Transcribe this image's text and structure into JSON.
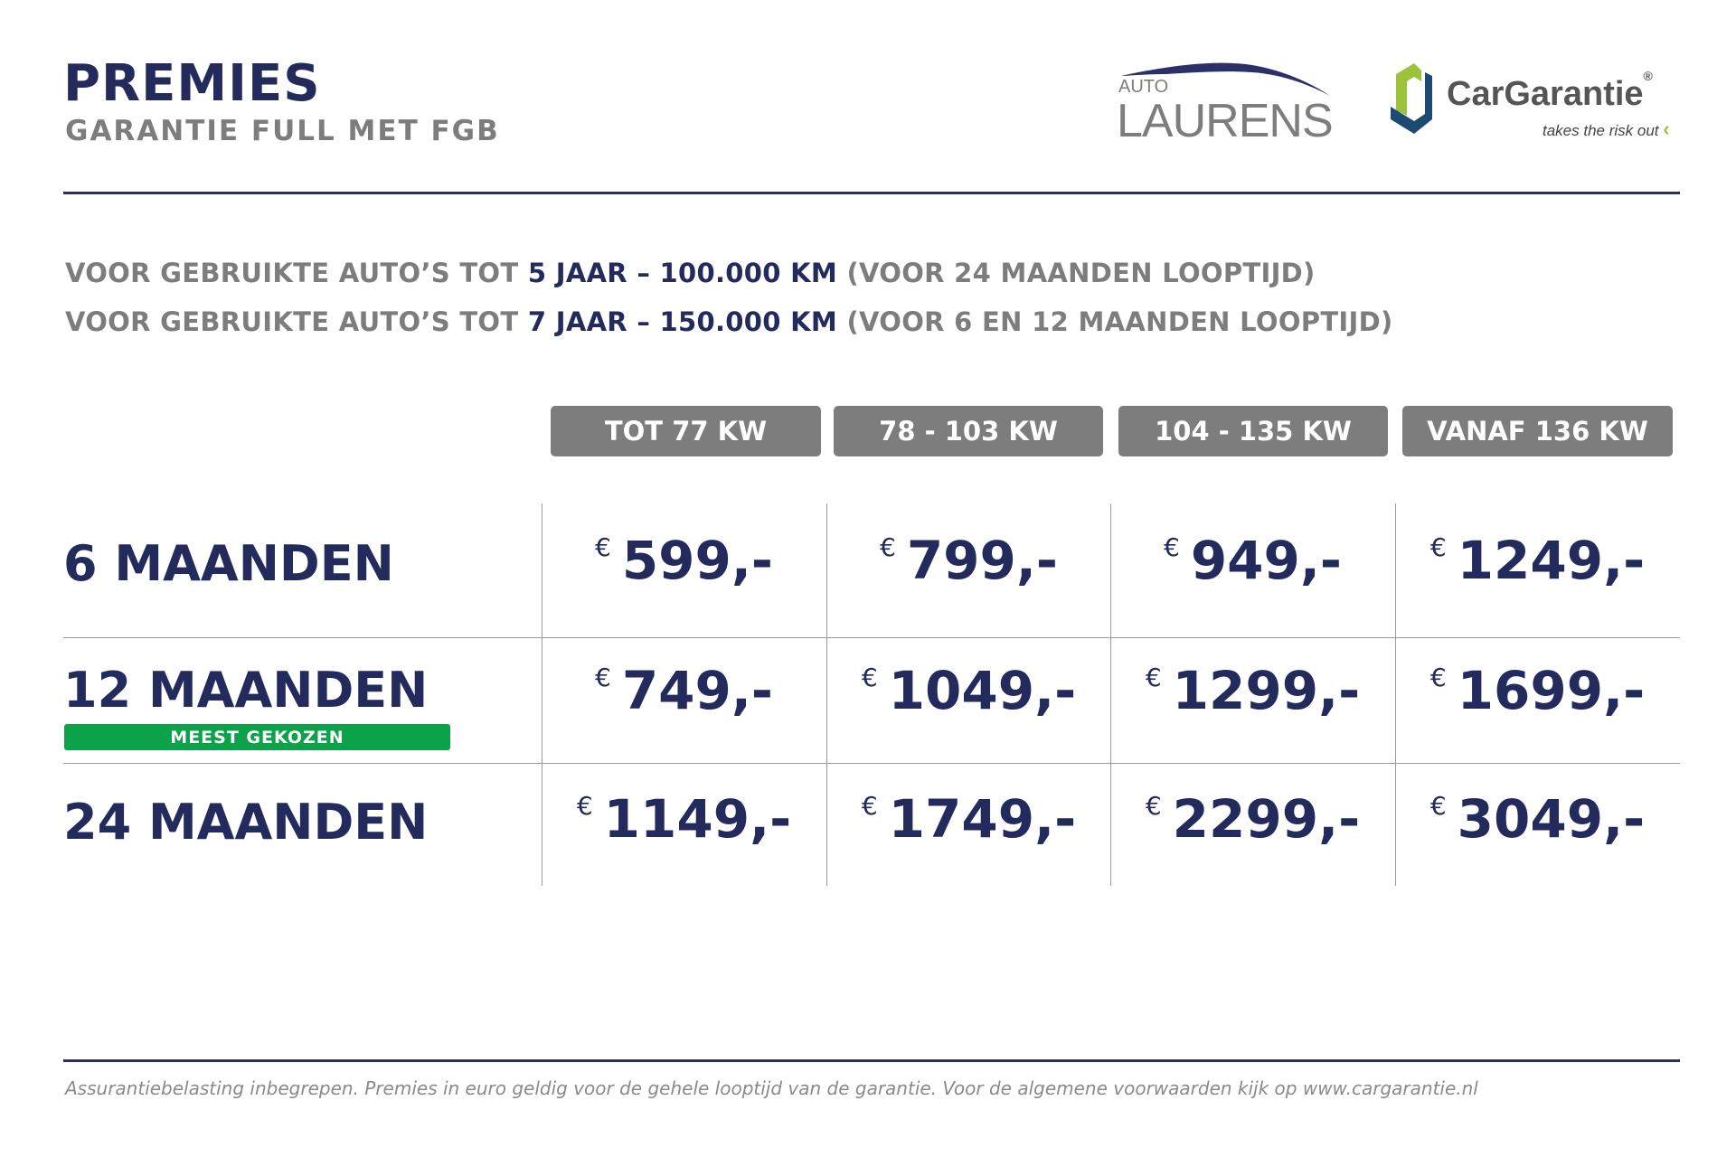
{
  "header": {
    "title": "PREMIES",
    "subtitle": "GARANTIE FULL MET FGB"
  },
  "logos": {
    "auto_laurens": {
      "small": "AUTO",
      "large": "LAURENS"
    },
    "cargarantie": {
      "name": "CarGarantie",
      "registered": "®",
      "tagline": "takes the risk out"
    }
  },
  "info_lines": [
    {
      "pre": "VOOR GEBRUIKTE AUTO’S TOT ",
      "highlight": "5 JAAR – 100.000 KM",
      "post": " (VOOR 24 MAANDEN LOOPTIJD)"
    },
    {
      "pre": "VOOR GEBRUIKTE AUTO’S TOT ",
      "highlight": "7 JAAR – 150.000 KM",
      "post": " (VOOR 6 EN 12 MAANDEN LOOPTIJD)"
    }
  ],
  "table": {
    "columns": [
      "TOT 77 KW",
      "78 - 103 KW",
      "104 - 135 KW",
      "VANAF 136 KW"
    ],
    "currency": "€",
    "rows": [
      {
        "label": "6 MAANDEN",
        "prices": [
          "599,-",
          "799,-",
          "949,-",
          "1249,-"
        ]
      },
      {
        "label": "12 MAANDEN",
        "badge": "MEEST GEKOZEN",
        "prices": [
          "749,-",
          "1049,-",
          "1299,-",
          "1699,-"
        ]
      },
      {
        "label": "24 MAANDEN",
        "prices": [
          "1149,-",
          "1749,-",
          "2299,-",
          "3049,-"
        ]
      }
    ]
  },
  "footer": "Assurantiebelasting inbegrepen. Premies in euro geldig voor de gehele looptijd van de garantie. Voor de algemene voorwaarden kijk op www.cargarantie.nl",
  "colors": {
    "navy": "#232a5c",
    "gray": "#7d7d7d",
    "badge_green": "#0ba24a",
    "logo_lime": "#9cc33b",
    "logo_blue": "#1d4a72"
  }
}
